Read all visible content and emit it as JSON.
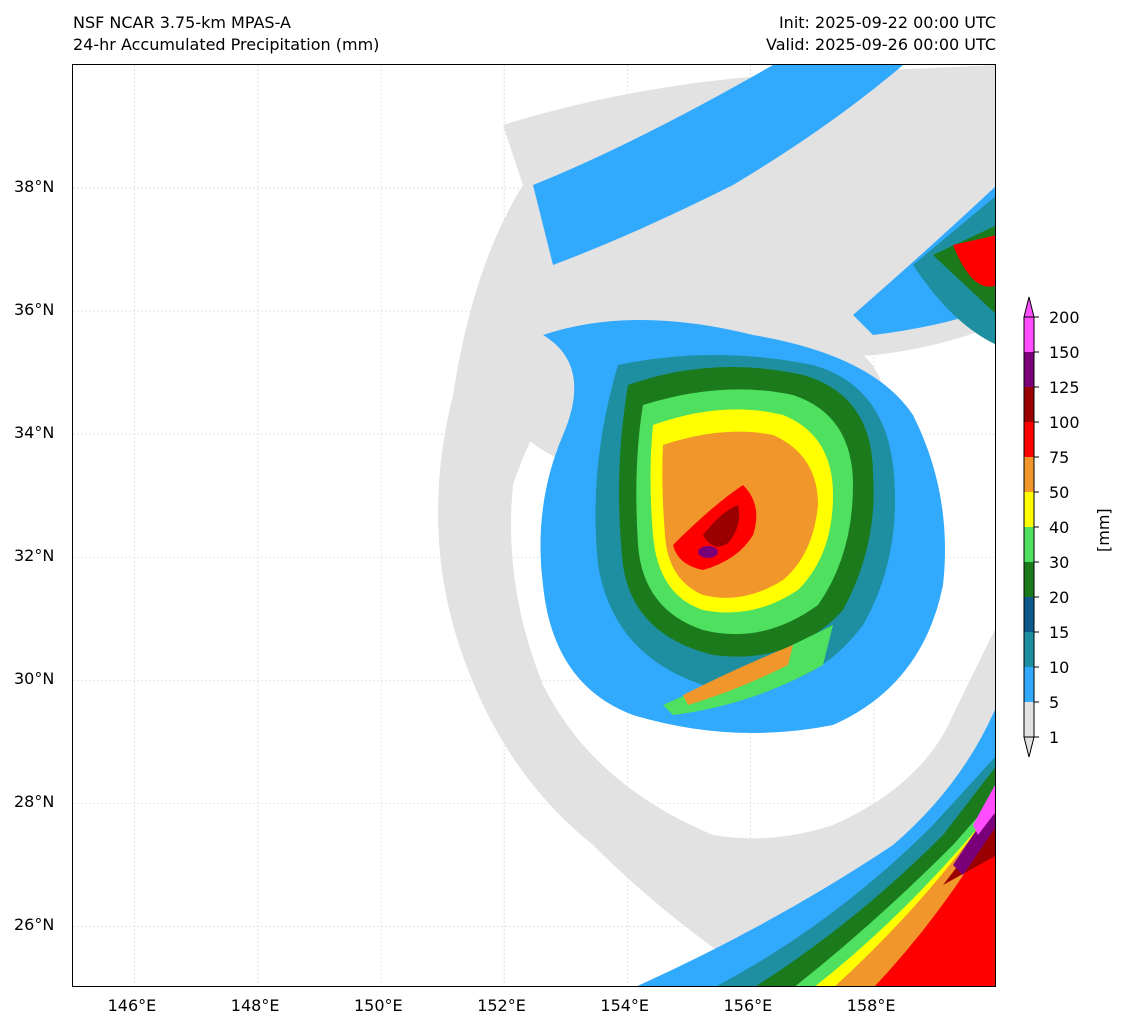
{
  "header": {
    "title": "NSF NCAR 3.75-km MPAS-A",
    "subtitle": "24-hr Accumulated Precipitation (mm)",
    "init": "Init: 2025-09-22 00:00 UTC",
    "valid": "Valid: 2025-09-26 00:00 UTC"
  },
  "map": {
    "lon_range": [
      145,
      160
    ],
    "lat_range": [
      25,
      40
    ],
    "lon_ticks": [
      {
        "value": 146,
        "label": "146°E"
      },
      {
        "value": 148,
        "label": "148°E"
      },
      {
        "value": 150,
        "label": "150°E"
      },
      {
        "value": 152,
        "label": "152°E"
      },
      {
        "value": 154,
        "label": "154°E"
      },
      {
        "value": 156,
        "label": "156°E"
      },
      {
        "value": 158,
        "label": "158°E"
      }
    ],
    "lat_ticks": [
      {
        "value": 26,
        "label": "26°N"
      },
      {
        "value": 28,
        "label": "28°N"
      },
      {
        "value": 30,
        "label": "30°N"
      },
      {
        "value": 32,
        "label": "32°N"
      },
      {
        "value": 34,
        "label": "34°N"
      },
      {
        "value": 36,
        "label": "36°N"
      },
      {
        "value": 38,
        "label": "38°N"
      }
    ]
  },
  "colorbar": {
    "unit_label": "[mm]",
    "levels": [
      "1",
      "5",
      "10",
      "15",
      "20",
      "30",
      "40",
      "50",
      "75",
      "100",
      "125",
      "150",
      "200"
    ],
    "colors": [
      "#e2e2e2",
      "#31a9fc",
      "#1d8fa0",
      "#0d5a8a",
      "#1b7a1b",
      "#4fe060",
      "#ffff00",
      "#f0962a",
      "#ff0000",
      "#9b0000",
      "#7a007a",
      "#ff4dff"
    ]
  }
}
